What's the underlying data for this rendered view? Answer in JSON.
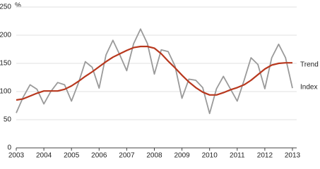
{
  "chart_data": {
    "type": "line",
    "y_unit": "%",
    "x": [
      2003,
      2003.25,
      2003.5,
      2003.75,
      2004,
      2004.25,
      2004.5,
      2004.75,
      2005,
      2005.25,
      2005.5,
      2005.75,
      2006,
      2006.25,
      2006.5,
      2006.75,
      2007,
      2007.25,
      2007.5,
      2007.75,
      2008,
      2008.25,
      2008.5,
      2008.75,
      2009,
      2009.25,
      2009.5,
      2009.75,
      2010,
      2010.25,
      2010.5,
      2010.75,
      2011,
      2011.25,
      2011.5,
      2011.75,
      2012,
      2012.25,
      2012.5,
      2012.75,
      2013
    ],
    "series": [
      {
        "name": "Trend",
        "color": "#b8381e",
        "values": [
          85,
          87,
          92,
          97,
          101,
          101,
          101,
          104,
          110,
          118,
          127,
          135,
          144,
          153,
          161,
          167,
          173,
          178,
          180,
          180,
          177,
          167,
          154,
          142,
          129,
          117,
          107,
          99,
          94,
          94,
          98,
          103,
          107,
          112,
          120,
          130,
          140,
          147,
          150,
          151,
          151
        ]
      },
      {
        "name": "Index",
        "color": "#9a9a9a",
        "values": [
          62,
          90,
          112,
          104,
          78,
          100,
          116,
          112,
          83,
          115,
          153,
          143,
          106,
          165,
          191,
          165,
          137,
          185,
          211,
          185,
          131,
          174,
          171,
          145,
          88,
          122,
          120,
          107,
          61,
          105,
          127,
          105,
          83,
          120,
          160,
          148,
          105,
          160,
          184,
          160,
          106
        ]
      }
    ],
    "xlim": [
      2003,
      2013
    ],
    "xticks": [
      2003,
      2004,
      2005,
      2006,
      2007,
      2008,
      2009,
      2010,
      2011,
      2012,
      2013
    ],
    "ylim": [
      0,
      250
    ],
    "yticks": [
      0,
      50,
      100,
      150,
      200,
      250
    ],
    "grid": true
  }
}
